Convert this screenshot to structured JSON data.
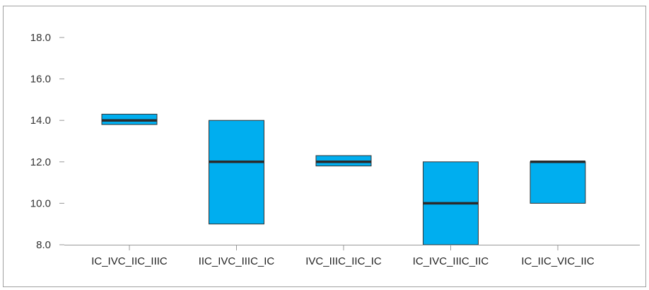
{
  "chart_data": {
    "type": "box",
    "title": "",
    "xlabel": "",
    "ylabel": "",
    "ylim": [
      8.0,
      18.0
    ],
    "y_ticks": [
      "8.0",
      "10.0",
      "12.0",
      "14.0",
      "16.0",
      "18.0"
    ],
    "categories": [
      "IC_IVC_IIC_IIIC",
      "IIC_IVC_IIIC_IC",
      "IVC_IIIC_IIC_IC",
      "IC_IVC_IIIC_IIC",
      "IC_IIC_VIC_IIC"
    ],
    "boxes": [
      {
        "q1": 13.8,
        "median": 14.0,
        "q3": 14.3
      },
      {
        "q1": 9.0,
        "median": 12.0,
        "q3": 14.0
      },
      {
        "q1": 11.8,
        "median": 12.0,
        "q3": 12.3
      },
      {
        "q1": 8.0,
        "median": 10.0,
        "q3": 12.0
      },
      {
        "q1": 10.0,
        "median": 12.0,
        "q3": 12.0
      }
    ],
    "grid": false,
    "colors": {
      "box_fill": "#00aeef",
      "box_stroke": "#333333",
      "median": "#2b2b2b",
      "axis": "#999999"
    }
  }
}
